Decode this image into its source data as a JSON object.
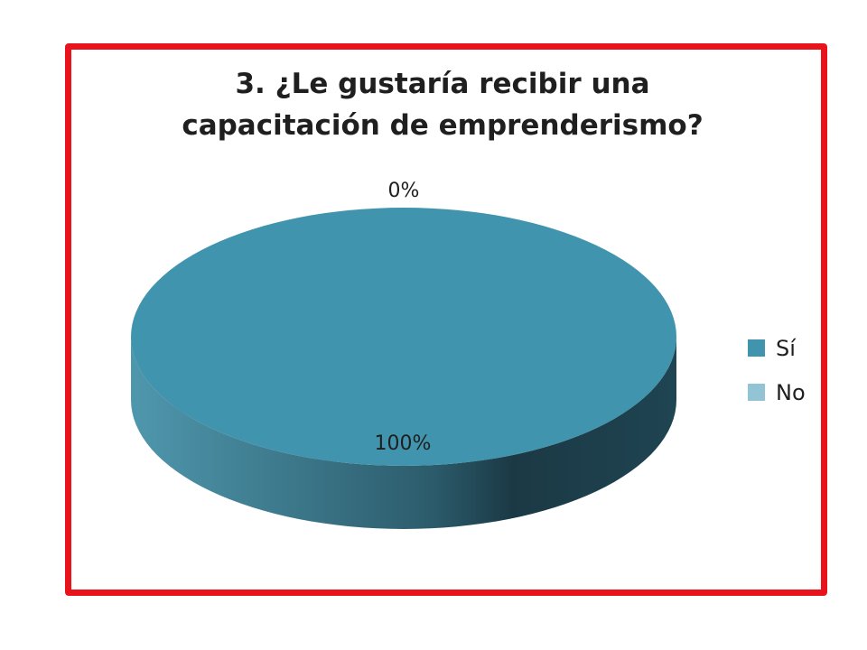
{
  "chart_data": {
    "type": "pie",
    "title": [
      "3. ¿Le gustaría recibir una",
      "capacitación de emprenderismo?"
    ],
    "categories": [
      "Sí",
      "No"
    ],
    "values": [
      100,
      0
    ],
    "data_labels": [
      "100%",
      "0%"
    ],
    "legend_position": "right",
    "style": "3d"
  },
  "colors": {
    "frame": "#e8131b",
    "si": "#4194ae",
    "si_side_dark": "#1b3945",
    "no": "#92c4d6",
    "text": "#1f1f1f"
  }
}
